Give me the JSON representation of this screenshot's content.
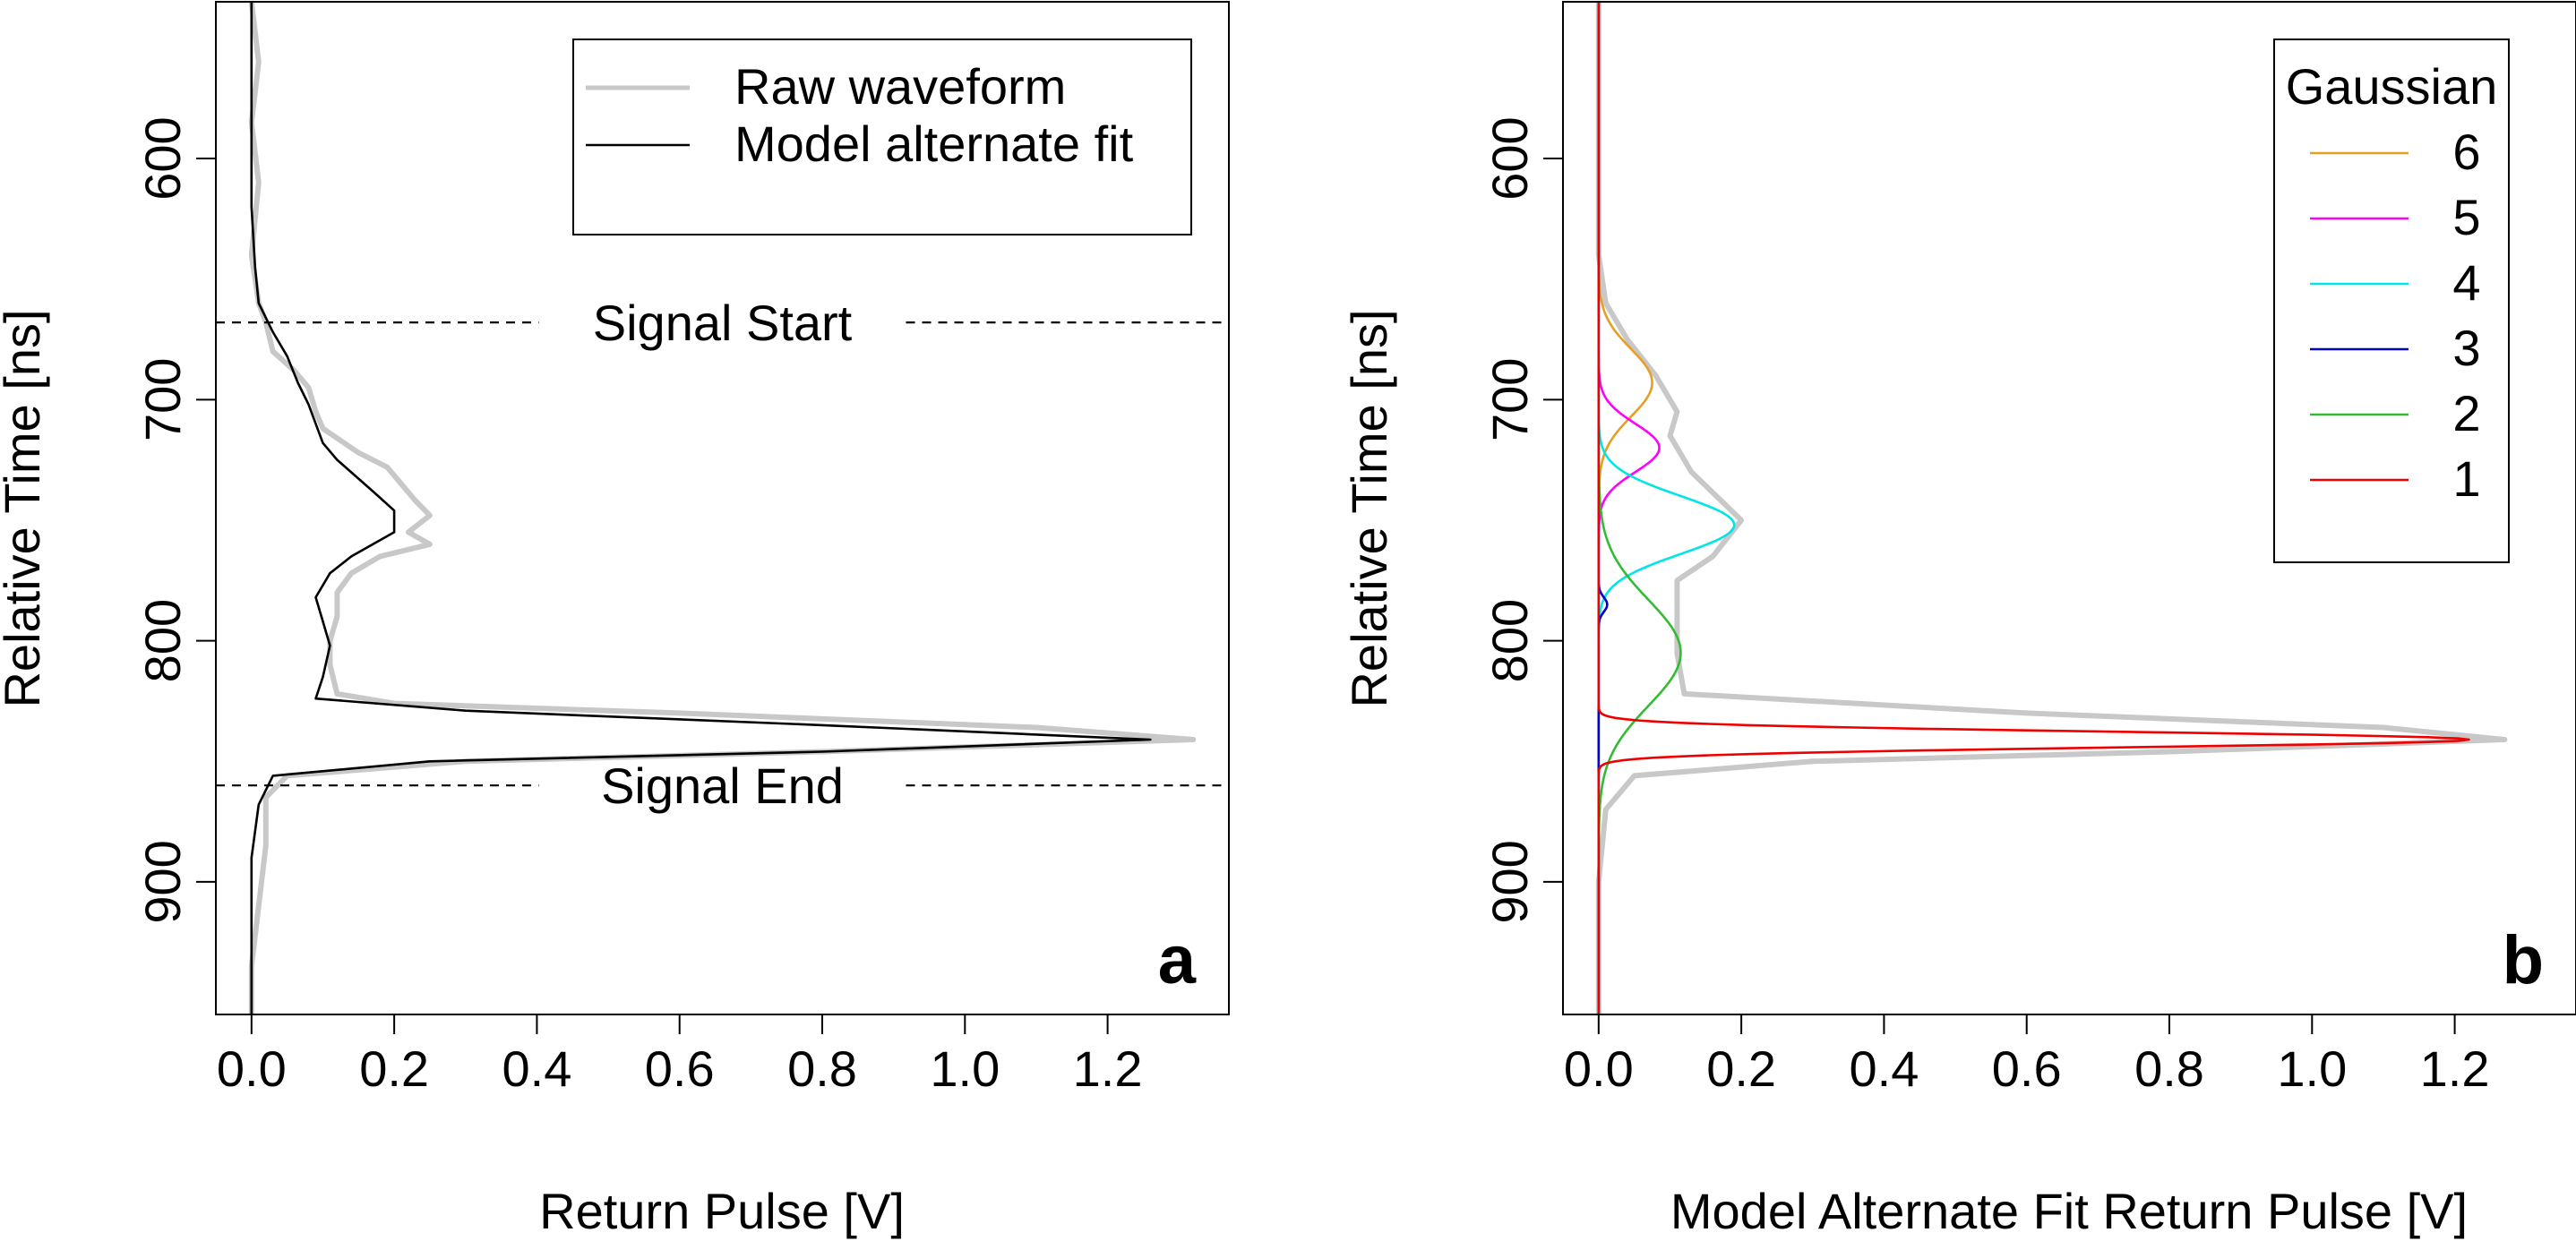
{
  "chart_data": [
    {
      "panel_label": "a",
      "type": "line",
      "orientation": "vertical",
      "xlabel": "Return Pulse [V]",
      "ylabel": "Relative Time [ns]",
      "xlim": [
        -0.05,
        1.37
      ],
      "ylim": [
        955,
        535
      ],
      "xticks": [
        0.0,
        0.2,
        0.4,
        0.6,
        0.8,
        1.0,
        1.2
      ],
      "xtick_labels": [
        "0.0",
        "0.2",
        "0.4",
        "0.6",
        "0.8",
        "1.0",
        "1.2"
      ],
      "yticks": [
        600,
        700,
        800,
        900
      ],
      "ytick_labels": [
        "600",
        "700",
        "800",
        "900"
      ],
      "legend": {
        "position": "top-right",
        "entries": [
          {
            "label": "Raw waveform",
            "color": "#c8c8c8"
          },
          {
            "label": "Model alternate fit",
            "color": "#000000"
          }
        ]
      },
      "annotations": [
        {
          "text": "Signal Start",
          "time": 668
        },
        {
          "text": "Signal End",
          "time": 860
        }
      ],
      "series": [
        {
          "name": "Raw waveform",
          "color": "#c8c8c8",
          "points": [
            [
              0.0,
              535
            ],
            [
              0.01,
              560
            ],
            [
              0.0,
              585
            ],
            [
              0.01,
              610
            ],
            [
              0.0,
              640
            ],
            [
              0.01,
              660
            ],
            [
              0.02,
              668
            ],
            [
              0.03,
              680
            ],
            [
              0.06,
              688
            ],
            [
              0.08,
              695
            ],
            [
              0.09,
              705
            ],
            [
              0.1,
              712
            ],
            [
              0.13,
              718
            ],
            [
              0.15,
              722
            ],
            [
              0.19,
              728
            ],
            [
              0.21,
              735
            ],
            [
              0.23,
              742
            ],
            [
              0.25,
              748
            ],
            [
              0.22,
              755
            ],
            [
              0.25,
              760
            ],
            [
              0.18,
              765
            ],
            [
              0.14,
              772
            ],
            [
              0.12,
              780
            ],
            [
              0.12,
              790
            ],
            [
              0.11,
              800
            ],
            [
              0.11,
              810
            ],
            [
              0.12,
              822
            ],
            [
              0.2,
              826
            ],
            [
              0.6,
              830
            ],
            [
              1.1,
              836
            ],
            [
              1.32,
              841
            ],
            [
              0.8,
              846
            ],
            [
              0.3,
              850
            ],
            [
              0.05,
              856
            ],
            [
              0.02,
              865
            ],
            [
              0.02,
              885
            ],
            [
              0.01,
              910
            ],
            [
              0.0,
              935
            ],
            [
              0.0,
              955
            ]
          ]
        },
        {
          "name": "Model alternate fit",
          "color": "#000000",
          "points": [
            [
              0.0,
              535
            ],
            [
              0.0,
              580
            ],
            [
              0.0,
              620
            ],
            [
              0.005,
              645
            ],
            [
              0.01,
              660
            ],
            [
              0.03,
              672
            ],
            [
              0.05,
              682
            ],
            [
              0.065,
              693
            ],
            [
              0.08,
              702
            ],
            [
              0.09,
              710
            ],
            [
              0.1,
              718
            ],
            [
              0.12,
              725
            ],
            [
              0.17,
              738
            ],
            [
              0.2,
              746
            ],
            [
              0.2,
              755
            ],
            [
              0.14,
              765
            ],
            [
              0.11,
              772
            ],
            [
              0.09,
              782
            ],
            [
              0.1,
              792
            ],
            [
              0.11,
              802
            ],
            [
              0.1,
              815
            ],
            [
              0.09,
              824
            ],
            [
              0.3,
              829
            ],
            [
              0.8,
              835
            ],
            [
              1.26,
              841
            ],
            [
              0.8,
              846
            ],
            [
              0.25,
              850
            ],
            [
              0.03,
              856
            ],
            [
              0.01,
              868
            ],
            [
              0.0,
              890
            ],
            [
              0.0,
              955
            ]
          ]
        }
      ]
    },
    {
      "panel_label": "b",
      "type": "line",
      "orientation": "vertical",
      "xlabel": "Model Alternate Fit Return Pulse [V]",
      "ylabel": "Relative Time [ns]",
      "xlim": [
        -0.05,
        1.37
      ],
      "ylim": [
        955,
        535
      ],
      "xticks": [
        0.0,
        0.2,
        0.4,
        0.6,
        0.8,
        1.0,
        1.2
      ],
      "xtick_labels": [
        "0.0",
        "0.2",
        "0.4",
        "0.6",
        "0.8",
        "1.0",
        "1.2"
      ],
      "yticks": [
        600,
        700,
        800,
        900
      ],
      "ytick_labels": [
        "600",
        "700",
        "800",
        "900"
      ],
      "legend": {
        "title": "Gaussian",
        "position": "top-right",
        "entries": [
          {
            "label": "6",
            "color": "#e69f22"
          },
          {
            "label": "5",
            "color": "#ff00ff"
          },
          {
            "label": "4",
            "color": "#00e5e5"
          },
          {
            "label": "3",
            "color": "#0000cc"
          },
          {
            "label": "2",
            "color": "#33bb33"
          },
          {
            "label": "1",
            "color": "#ee0000"
          }
        ]
      },
      "series": [
        {
          "name": "Raw waveform",
          "color": "#c8c8c8",
          "points": [
            [
              0.0,
              535
            ],
            [
              0.0,
              640
            ],
            [
              0.01,
              660
            ],
            [
              0.04,
              675
            ],
            [
              0.08,
              690
            ],
            [
              0.11,
              705
            ],
            [
              0.1,
              715
            ],
            [
              0.13,
              730
            ],
            [
              0.2,
              750
            ],
            [
              0.16,
              765
            ],
            [
              0.11,
              775
            ],
            [
              0.11,
              790
            ],
            [
              0.11,
              805
            ],
            [
              0.12,
              822
            ],
            [
              0.6,
              830
            ],
            [
              1.1,
              836
            ],
            [
              1.27,
              841
            ],
            [
              0.8,
              846
            ],
            [
              0.3,
              850
            ],
            [
              0.05,
              856
            ],
            [
              0.01,
              870
            ],
            [
              0.0,
              900
            ],
            [
              0.0,
              955
            ]
          ]
        },
        {
          "name": "Gaussian 6",
          "color": "#e69f22",
          "gaussian": {
            "amp": 0.075,
            "center": 693,
            "sigma": 14
          }
        },
        {
          "name": "Gaussian 5",
          "color": "#ff00ff",
          "gaussian": {
            "amp": 0.085,
            "center": 720,
            "sigma": 10
          }
        },
        {
          "name": "Gaussian 4",
          "color": "#00e5e5",
          "gaussian": {
            "amp": 0.19,
            "center": 752,
            "sigma": 12
          }
        },
        {
          "name": "Gaussian 3",
          "color": "#0000cc",
          "gaussian": {
            "amp": 0.012,
            "center": 785,
            "sigma": 3
          }
        },
        {
          "name": "Gaussian 2",
          "color": "#33bb33",
          "gaussian": {
            "amp": 0.115,
            "center": 805,
            "sigma": 22
          }
        },
        {
          "name": "Gaussian 1",
          "color": "#ee0000",
          "gaussian": {
            "amp": 1.22,
            "center": 841,
            "sigma": 3.2
          }
        }
      ]
    }
  ]
}
